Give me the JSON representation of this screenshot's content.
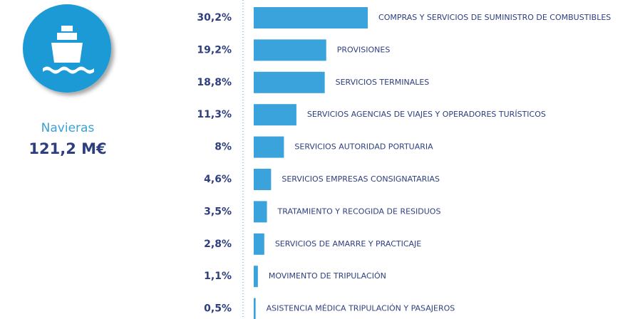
{
  "summary": {
    "name": "Navieras",
    "value": "121,2 M€"
  },
  "chart_data": {
    "type": "bar",
    "orientation": "horizontal",
    "color": "#3aa3dc",
    "categories": [
      "COMPRAS Y SERVICIOS DE SUMINISTRO DE COMBUSTIBLES",
      "PROVISIONES",
      "SERVICIOS TERMINALES",
      "SERVICIOS AGENCIAS DE VIAJES Y OPERADORES TURÍSTICOS",
      "SERVICIOS AUTORIDAD PORTUARIA",
      "SERVICIOS EMPRESAS CONSIGNATARIAS",
      "TRATAMIENTO Y RECOGIDA DE RESIDUOS",
      "SERVICIOS DE AMARRE Y PRACTICAJE",
      "MOVIMENTO DE TRIPULACIÓN",
      "ASISTENCIA MÉDICA TRIPULACIÓN Y PASAJEROS"
    ],
    "values": [
      30.2,
      19.2,
      18.8,
      11.3,
      8,
      4.6,
      3.5,
      2.8,
      1.1,
      0.5
    ],
    "value_labels": [
      "30,2%",
      "19,2%",
      "18,8%",
      "11,3%",
      "8%",
      "4,6%",
      "3,5%",
      "2,8%",
      "1,1%",
      "0,5%"
    ]
  }
}
